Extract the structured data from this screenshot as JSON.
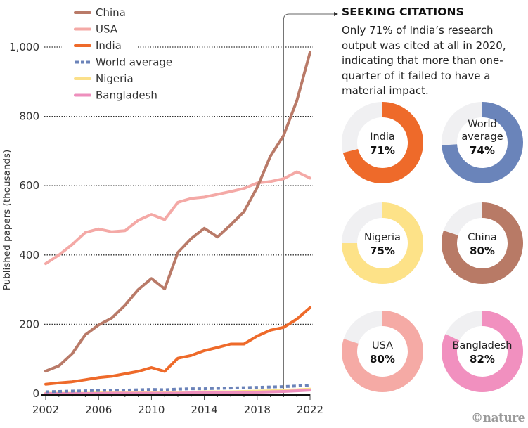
{
  "chart_data": [
    {
      "type": "line",
      "title": "",
      "xlabel": "",
      "ylabel": "Published papers (thousands)",
      "x": [
        2002,
        2003,
        2004,
        2005,
        2006,
        2007,
        2008,
        2009,
        2010,
        2011,
        2012,
        2013,
        2014,
        2015,
        2016,
        2017,
        2018,
        2019,
        2020,
        2021,
        2022
      ],
      "xticks": [
        "2002",
        "2006",
        "2010",
        "2014",
        "2018",
        "2022"
      ],
      "yticks": [
        "0",
        "200",
        "400",
        "600",
        "800",
        "1,000"
      ],
      "ylim": [
        0,
        1000
      ],
      "xlim": [
        2002,
        2022
      ],
      "grid": "horizontal dotted",
      "legend_position": "top-left",
      "annotation_year": 2020,
      "series": [
        {
          "name": "China",
          "color": "#b97a68",
          "style": "solid",
          "values": [
            65,
            80,
            115,
            170,
            198,
            218,
            255,
            300,
            332,
            302,
            407,
            447,
            477,
            452,
            487,
            525,
            595,
            685,
            745,
            845,
            985
          ]
        },
        {
          "name": "USA",
          "color": "#f4a9a6",
          "style": "solid",
          "values": [
            375,
            400,
            430,
            465,
            475,
            467,
            470,
            500,
            517,
            502,
            552,
            563,
            567,
            575,
            583,
            592,
            608,
            612,
            620,
            640,
            622
          ]
        },
        {
          "name": "India",
          "color": "#ee6a2a",
          "style": "solid",
          "values": [
            27,
            31,
            34,
            40,
            46,
            50,
            57,
            64,
            75,
            64,
            102,
            110,
            124,
            133,
            143,
            143,
            166,
            183,
            191,
            215,
            248
          ]
        },
        {
          "name": "World average",
          "color": "#6b83b9",
          "style": "dotted",
          "values": [
            5,
            6,
            7,
            8,
            9,
            10,
            10,
            11,
            12,
            11,
            13,
            14,
            14,
            15,
            16,
            17,
            18,
            19,
            20,
            22,
            24
          ]
        },
        {
          "name": "Nigeria",
          "color": "#fbe08a",
          "style": "solid",
          "values": [
            1,
            1,
            1,
            1,
            2,
            2,
            2,
            3,
            3,
            3,
            4,
            4,
            5,
            5,
            5,
            6,
            7,
            8,
            10,
            11,
            13
          ]
        },
        {
          "name": "Bangladesh",
          "color": "#ee8fbd",
          "style": "solid",
          "values": [
            0,
            0,
            0,
            0,
            0,
            1,
            1,
            1,
            1,
            1,
            1,
            2,
            2,
            2,
            2,
            3,
            4,
            5,
            6,
            8,
            10
          ]
        }
      ]
    },
    {
      "type": "pie",
      "variant": "donut",
      "title": "SEEKING CITATIONS",
      "subtitle": "Only 71% of India’s research output was cited at all in 2020, indicating that more than one-quarter of it failed to have a material impact.",
      "remainder_color": "#f0f0f2",
      "slices": [
        {
          "name": "India",
          "label_lines": [
            "India"
          ],
          "value": 71,
          "label": "71%",
          "color": "#ee6a2a"
        },
        {
          "name": "World average",
          "label_lines": [
            "World",
            "average"
          ],
          "value": 74,
          "label": "74%",
          "color": "#6a84ba"
        },
        {
          "name": "Nigeria",
          "label_lines": [
            "Nigeria"
          ],
          "value": 75,
          "label": "75%",
          "color": "#fde288"
        },
        {
          "name": "China",
          "label_lines": [
            "China"
          ],
          "value": 80,
          "label": "80%",
          "color": "#b87a66"
        },
        {
          "name": "USA",
          "label_lines": [
            "USA"
          ],
          "value": 80,
          "label": "80%",
          "color": "#f5aaa5"
        },
        {
          "name": "Bangladesh",
          "label_lines": [
            "Bangladesh"
          ],
          "value": 82,
          "label": "82%",
          "color": "#f190bf"
        }
      ]
    }
  ],
  "credit": "©nature"
}
